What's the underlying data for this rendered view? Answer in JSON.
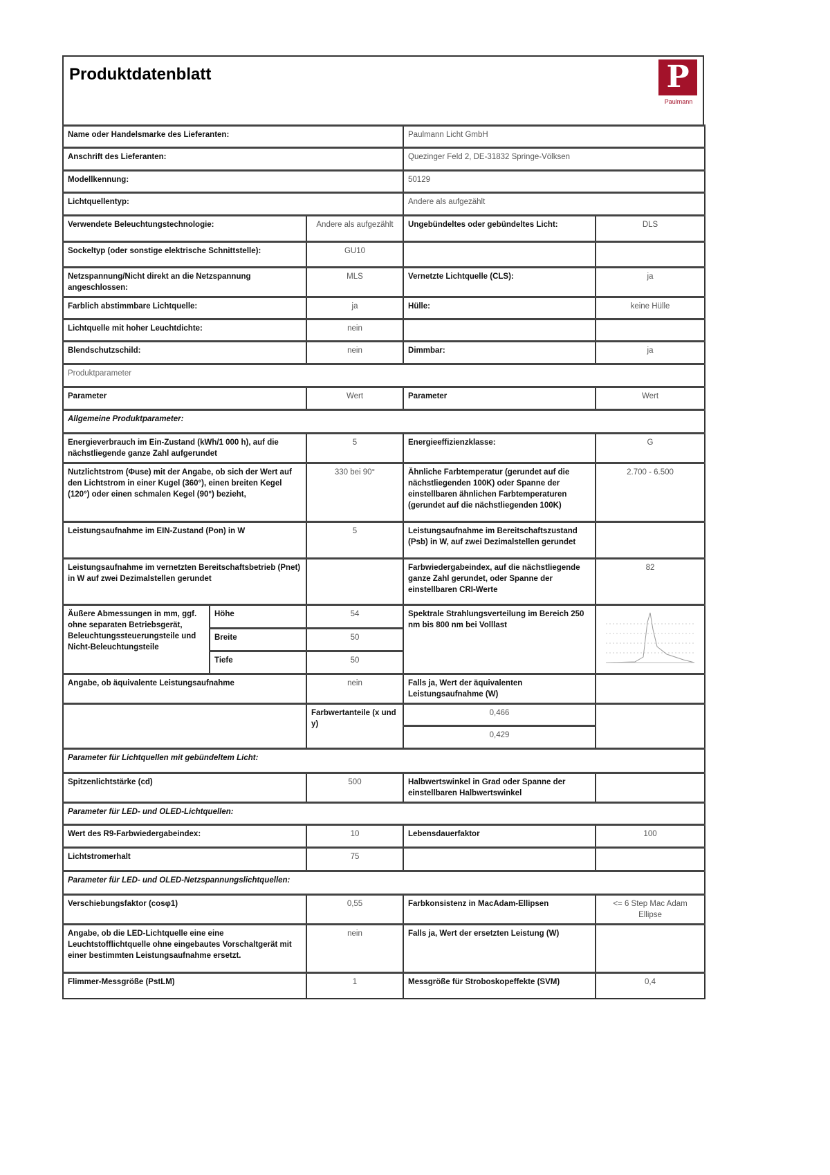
{
  "header": {
    "title": "Produktdatenblatt"
  },
  "logo": {
    "letter": "P",
    "text": "Paulmann",
    "color": "#a3122a"
  },
  "supplier": {
    "name_label": "Name oder Handelsmarke des Lieferanten:",
    "name_value": "Paulmann Licht GmbH",
    "address_label": "Anschrift des Lieferanten:",
    "address_value": "Quezinger Feld 2, DE-31832 Springe-Völksen",
    "model_label": "Modellkennung:",
    "model_value": "50129",
    "type_label": "Lichtquellentyp:",
    "type_value": "Andere als aufgezählt"
  },
  "tech": {
    "technology_label": "Verwendete Beleuchtungstechnologie:",
    "technology_value": "Andere als aufgezählt",
    "focus_label": "Ungebündeltes oder gebündeltes Licht:",
    "focus_value": "DLS",
    "cap_label": "Sockeltyp (oder sonstige elektrische Schnittstelle):",
    "cap_value": "GU10",
    "mains_label": "Netzspannung/Nicht direkt an die Netzspannung angeschlossen:",
    "mains_value": "MLS",
    "connected_label": "Vernetzte Lichtquelle (CLS):",
    "connected_value": "ja",
    "tunable_label": "Farblich abstimmbare Lichtquelle:",
    "tunable_value": "ja",
    "envelope_label": "Hülle:",
    "envelope_value": "keine Hülle",
    "luminance_label": "Lichtquelle mit hoher Leuchtdichte:",
    "luminance_value": "nein",
    "glare_label": "Blendschutzschild:",
    "glare_value": "nein",
    "dimmable_label": "Dimmbar:",
    "dimmable_value": "ja"
  },
  "params": {
    "section": "Produktparameter",
    "param_label": "Parameter",
    "value_label": "Wert",
    "general_section": "Allgemeine Produktparameter:",
    "energy_label": "Energieverbrauch im Ein-Zustand (kWh/1 000 h), auf die nächstliegende ganze Zahl aufgerundet",
    "energy_value": "5",
    "class_label": "Energieeffizienzklasse:",
    "class_value": "G",
    "flux_label": "Nutzlichtstrom (Φuse) mit der Angabe, ob sich der Wert auf den Lichtstrom in einer Kugel (360°), einen breiten Kegel (120°) oder einen schmalen Kegel (90°) bezieht,",
    "flux_value": "330 bei 90°",
    "cct_label": "Ähnliche Farbtemperatur (gerundet auf die nächstliegenden 100K) oder Spanne der einstellbaren ähnlichen Farbtemperaturen (gerundet auf die nächstliegenden 100K)",
    "cct_value": "2.700 - 6.500",
    "pon_label": "Leistungsaufnahme im EIN-Zustand (Pon) in W",
    "pon_value": "5",
    "psb_label": "Leistungsaufnahme im Bereitschaftszustand (Psb) in W, auf zwei Dezimalstellen gerundet",
    "psb_value": "",
    "pnet_label": "Leistungsaufnahme im vernetzten Bereitschaftsbetrieb (Pnet) in W auf zwei Dezimalstellen gerundet",
    "pnet_value": "",
    "cri_label": "Farbwiedergabeindex, auf die nächstliegende ganze Zahl gerundet, oder Spanne der einstellbaren CRI-Werte",
    "cri_value": "82",
    "dims_label": "Äußere Abmessungen in mm, ggf. ohne separaten Betriebsgerät, Beleuchtungssteuerungsteile und Nicht-Beleuchtungsteile",
    "height_label": "Höhe",
    "height_value": "54",
    "width_label": "Breite",
    "width_value": "50",
    "depth_label": "Tiefe",
    "depth_value": "50",
    "spectrum_label": "Spektrale Strahlungsverteilung im Bereich 250 nm bis 800 nm bei Volllast",
    "equiv_label": "Angabe, ob äquivalente Leistungsaufnahme",
    "equiv_value": "nein",
    "equiv_if_label": "Falls ja, Wert der äquivalenten Leistungsaufnahme (W)",
    "equiv_if_value": "",
    "chroma_label": "Farbwertanteile (x und y)",
    "chroma_x": "0,466",
    "chroma_y": "0,429",
    "directional_section": "Parameter für Lichtquellen mit gebündeltem Licht:",
    "peak_label": "Spitzenlichtstärke (cd)",
    "peak_value": "500",
    "beam_label": "Halbwertswinkel in Grad oder Spanne der einstellbaren Halbwertswinkel",
    "beam_value": "",
    "led_section": "Parameter für LED- und OLED-Lichtquellen:",
    "r9_label": "Wert des R9-Farbwiedergabeindex:",
    "r9_value": "10",
    "survival_label": "Lebensdauerfaktor",
    "survival_value": "100",
    "maint_label": "Lichtstromerhalt",
    "maint_value": "75",
    "mains_section": "Parameter für LED- und OLED-Netzspannungslichtquellen:",
    "cosphi_label": "Verschiebungsfaktor (cosφ1)",
    "cosphi_value": "0,55",
    "consistency_label": "Farbkonsistenz in MacAdam-Ellipsen",
    "consistency_value": "<= 6 Step Mac Adam Ellipse",
    "replace_label": "Angabe, ob die LED-Lichtquelle eine eine Leuchtstofflichtquelle ohne eingebautes Vorschaltgerät mit einer bestimmten Leistungsaufnahme ersetzt.",
    "replace_value": "nein",
    "replace_if_label": "Falls ja, Wert der ersetzten Leistung (W)",
    "replace_if_value": "",
    "flicker_label": "Flimmer-Messgröße (PstLM)",
    "flicker_value": "1",
    "strobo_label": "Messgröße für Stroboskopeffekte (SVM)",
    "strobo_value": "0,4"
  }
}
